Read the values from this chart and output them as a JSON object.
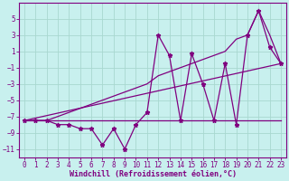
{
  "x_data": [
    0,
    1,
    2,
    3,
    4,
    5,
    6,
    7,
    8,
    9,
    10,
    11,
    12,
    13,
    14,
    15,
    16,
    17,
    18,
    19,
    20,
    21,
    22,
    23
  ],
  "y_main": [
    -7.5,
    -7.5,
    -7.5,
    -8.0,
    -8.0,
    -8.5,
    -8.5,
    -10.5,
    -8.5,
    -11.0,
    -8.0,
    -6.5,
    3.0,
    0.5,
    -7.5,
    0.7,
    -3.0,
    -7.5,
    -0.5,
    -8.0,
    3.0,
    6.0,
    1.5,
    -0.5
  ],
  "y_upper_env": [
    -7.5,
    -7.5,
    -7.5,
    -7.0,
    -6.5,
    -6.0,
    -5.5,
    -5.0,
    -4.5,
    -4.0,
    -3.5,
    -3.0,
    -2.0,
    -1.5,
    -1.0,
    -0.5,
    0.0,
    0.5,
    1.0,
    2.5,
    3.0,
    6.0,
    3.0,
    -0.5
  ],
  "y_lower_env": [
    -7.5,
    -7.5,
    -7.5,
    -7.5,
    -7.5,
    -7.5,
    -7.5,
    -7.5,
    -7.5,
    -7.5,
    -7.5,
    -7.5,
    -7.5,
    -7.5,
    -7.5,
    -7.5,
    -7.5,
    -7.5,
    -7.5,
    -7.5,
    -7.5,
    -7.5,
    -7.5,
    -7.5
  ],
  "y_mid_line_x": [
    0,
    23
  ],
  "y_mid_line_y": [
    -7.5,
    -0.5
  ],
  "line_color": "#800080",
  "bg_color": "#c8f0ee",
  "grid_color": "#a8d8d0",
  "xlabel": "Windchill (Refroidissement éolien,°C)",
  "xlim": [
    -0.5,
    23.5
  ],
  "ylim": [
    -12,
    7
  ],
  "yticks": [
    -11,
    -9,
    -7,
    -5,
    -3,
    -1,
    1,
    3,
    5
  ],
  "xticks": [
    0,
    1,
    2,
    3,
    4,
    5,
    6,
    7,
    8,
    9,
    10,
    11,
    12,
    13,
    14,
    15,
    16,
    17,
    18,
    19,
    20,
    21,
    22,
    23
  ],
  "tick_fontsize": 5.5,
  "xlabel_fontsize": 6
}
